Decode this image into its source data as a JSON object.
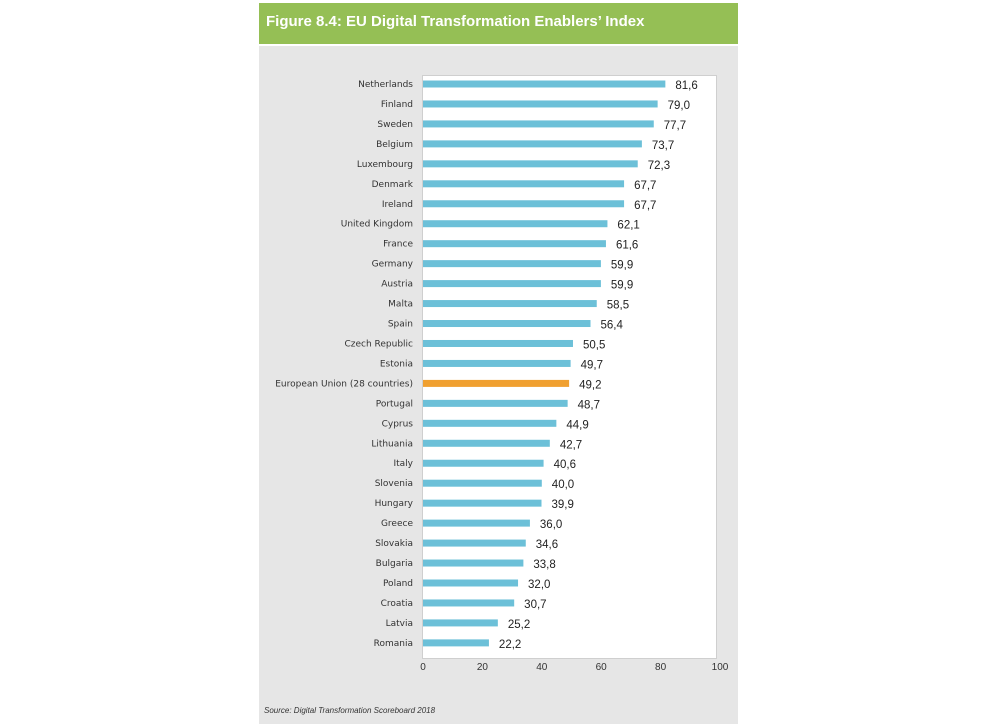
{
  "figure": {
    "title": "Figure 8.4: EU Digital Transformation Enablers’ Index",
    "source": "Source: Digital Transformation Scoreboard 2018"
  },
  "colors": {
    "header": "#95bf55",
    "bar": "#6cc0d8",
    "highlight_bar": "#f0a030",
    "panel": "#e6e6e6"
  },
  "chart_data": {
    "type": "bar",
    "orientation": "horizontal",
    "categories": [
      "Netherlands",
      "Finland",
      "Sweden",
      "Belgium",
      "Luxembourg",
      "Denmark",
      "Ireland",
      "United Kingdom",
      "France",
      "Germany",
      "Austria",
      "Malta",
      "Spain",
      "Czech Republic",
      "Estonia",
      "European Union (28 countries)",
      "Portugal",
      "Cyprus",
      "Lithuania",
      "Italy",
      "Slovenia",
      "Hungary",
      "Greece",
      "Slovakia",
      "Bulgaria",
      "Poland",
      "Croatia",
      "Latvia",
      "Romania"
    ],
    "values": [
      81.6,
      79.0,
      77.7,
      73.7,
      72.3,
      67.7,
      67.7,
      62.1,
      61.6,
      59.9,
      59.9,
      58.5,
      56.4,
      50.5,
      49.7,
      49.2,
      48.7,
      44.9,
      42.7,
      40.6,
      40.0,
      39.9,
      36.0,
      34.6,
      33.8,
      32.0,
      30.7,
      25.2,
      22.2
    ],
    "value_labels": [
      "81,6",
      "79,0",
      "77,7",
      "73,7",
      "72,3",
      "67,7",
      "67,7",
      "62,1",
      "61,6",
      "59,9",
      "59,9",
      "58,5",
      "56,4",
      "50,5",
      "49,7",
      "49,2",
      "48,7",
      "44,9",
      "42,7",
      "40,6",
      "40,0",
      "39,9",
      "36,0",
      "34,6",
      "33,8",
      "32,0",
      "30,7",
      "25,2",
      "22,2"
    ],
    "highlight": "European Union (28 countries)",
    "xlim": [
      0,
      100
    ],
    "xticks": [
      0,
      20,
      40,
      60,
      80,
      100
    ],
    "xlabel": "",
    "ylabel": "",
    "grid": false,
    "legend": "none"
  }
}
